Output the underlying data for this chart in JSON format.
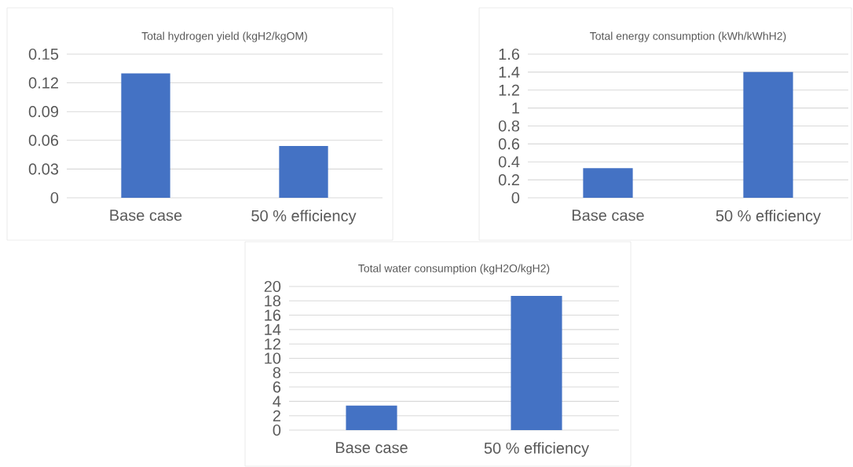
{
  "chart_data": [
    {
      "type": "bar",
      "title": "Total hydrogen yield (kgH2/kgOM)",
      "categories": [
        "Base case",
        "50 % efficiency"
      ],
      "values": [
        0.13,
        0.054
      ],
      "color": "#4472c4",
      "ylim": [
        0,
        0.15
      ],
      "yticks": [
        0,
        0.03,
        0.06,
        0.09,
        0.12,
        0.15
      ],
      "grid": "y"
    },
    {
      "type": "bar",
      "title": "Total energy consumption (kWh/kWhH2)",
      "categories": [
        "Base case",
        "50 % efficiency"
      ],
      "values": [
        0.33,
        1.4
      ],
      "color": "#4472c4",
      "ylim": [
        0,
        1.6
      ],
      "yticks": [
        0,
        0.2,
        0.4,
        0.6,
        0.8,
        1,
        1.2,
        1.4,
        1.6
      ],
      "grid": "y"
    },
    {
      "type": "bar",
      "title": "Total water consumption (kgH2O/kgH2)",
      "categories": [
        "Base case",
        "50 % efficiency"
      ],
      "values": [
        3.4,
        18.7
      ],
      "color": "#4472c4",
      "ylim": [
        0,
        20
      ],
      "yticks": [
        0,
        2,
        4,
        6,
        8,
        10,
        12,
        14,
        16,
        18,
        20
      ],
      "grid": "y"
    }
  ]
}
